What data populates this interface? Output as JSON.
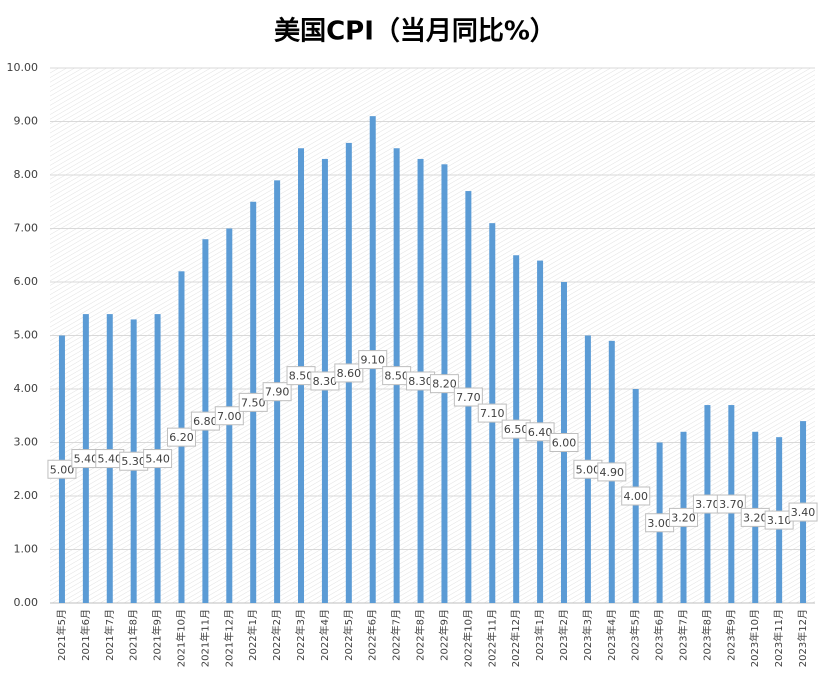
{
  "chart_data": {
    "type": "bar",
    "title": "美国CPI（当月同比%）",
    "categories": [
      "2021年5月",
      "2021年6月",
      "2021年7月",
      "2021年8月",
      "2021年9月",
      "2021年10月",
      "2021年11月",
      "2021年12月",
      "2022年1月",
      "2022年2月",
      "2022年3月",
      "2022年4月",
      "2022年5月",
      "2022年6月",
      "2022年7月",
      "2022年8月",
      "2022年9月",
      "2022年10月",
      "2022年11月",
      "2022年12月",
      "2023年1月",
      "2023年2月",
      "2023年3月",
      "2023年4月",
      "2023年5月",
      "2023年6月",
      "2023年7月",
      "2023年8月",
      "2023年9月",
      "2023年10月",
      "2023年11月",
      "2023年12月"
    ],
    "values": [
      5.0,
      5.4,
      5.4,
      5.3,
      5.4,
      6.2,
      6.8,
      7.0,
      7.5,
      7.9,
      8.5,
      8.3,
      8.6,
      9.1,
      8.5,
      8.3,
      8.2,
      7.7,
      7.1,
      6.5,
      6.4,
      6.0,
      5.0,
      4.9,
      4.0,
      3.0,
      3.2,
      3.7,
      3.7,
      3.2,
      3.1,
      3.4
    ],
    "value_labels": [
      "5.00",
      "5.40",
      "5.40",
      "5.30",
      "5.40",
      "6.20",
      "6.80",
      "7.00",
      "7.50",
      "7.90",
      "8.50",
      "8.30",
      "8.60",
      "9.10",
      "8.50",
      "8.30",
      "8.20",
      "7.70",
      "7.10",
      "6.50",
      "6.40",
      "6.00",
      "5.00",
      "4.90",
      "4.00",
      "3.00",
      "3.20",
      "3.70",
      "3.70",
      "3.20",
      "3.10",
      "3.40"
    ],
    "color": "#5b9bd5",
    "ylim": [
      0,
      10
    ],
    "yticks": [
      {
        "value": 0,
        "label": "0.00"
      },
      {
        "value": 1,
        "label": "1.00"
      },
      {
        "value": 2,
        "label": "2.00"
      },
      {
        "value": 3,
        "label": "3.00"
      },
      {
        "value": 4,
        "label": "4.00"
      },
      {
        "value": 5,
        "label": "5.00"
      },
      {
        "value": 6,
        "label": "6.00"
      },
      {
        "value": 7,
        "label": "7.00"
      },
      {
        "value": 8,
        "label": "8.00"
      },
      {
        "value": 9,
        "label": "9.00"
      },
      {
        "value": 10,
        "label": "10.00"
      }
    ],
    "grid": true
  }
}
